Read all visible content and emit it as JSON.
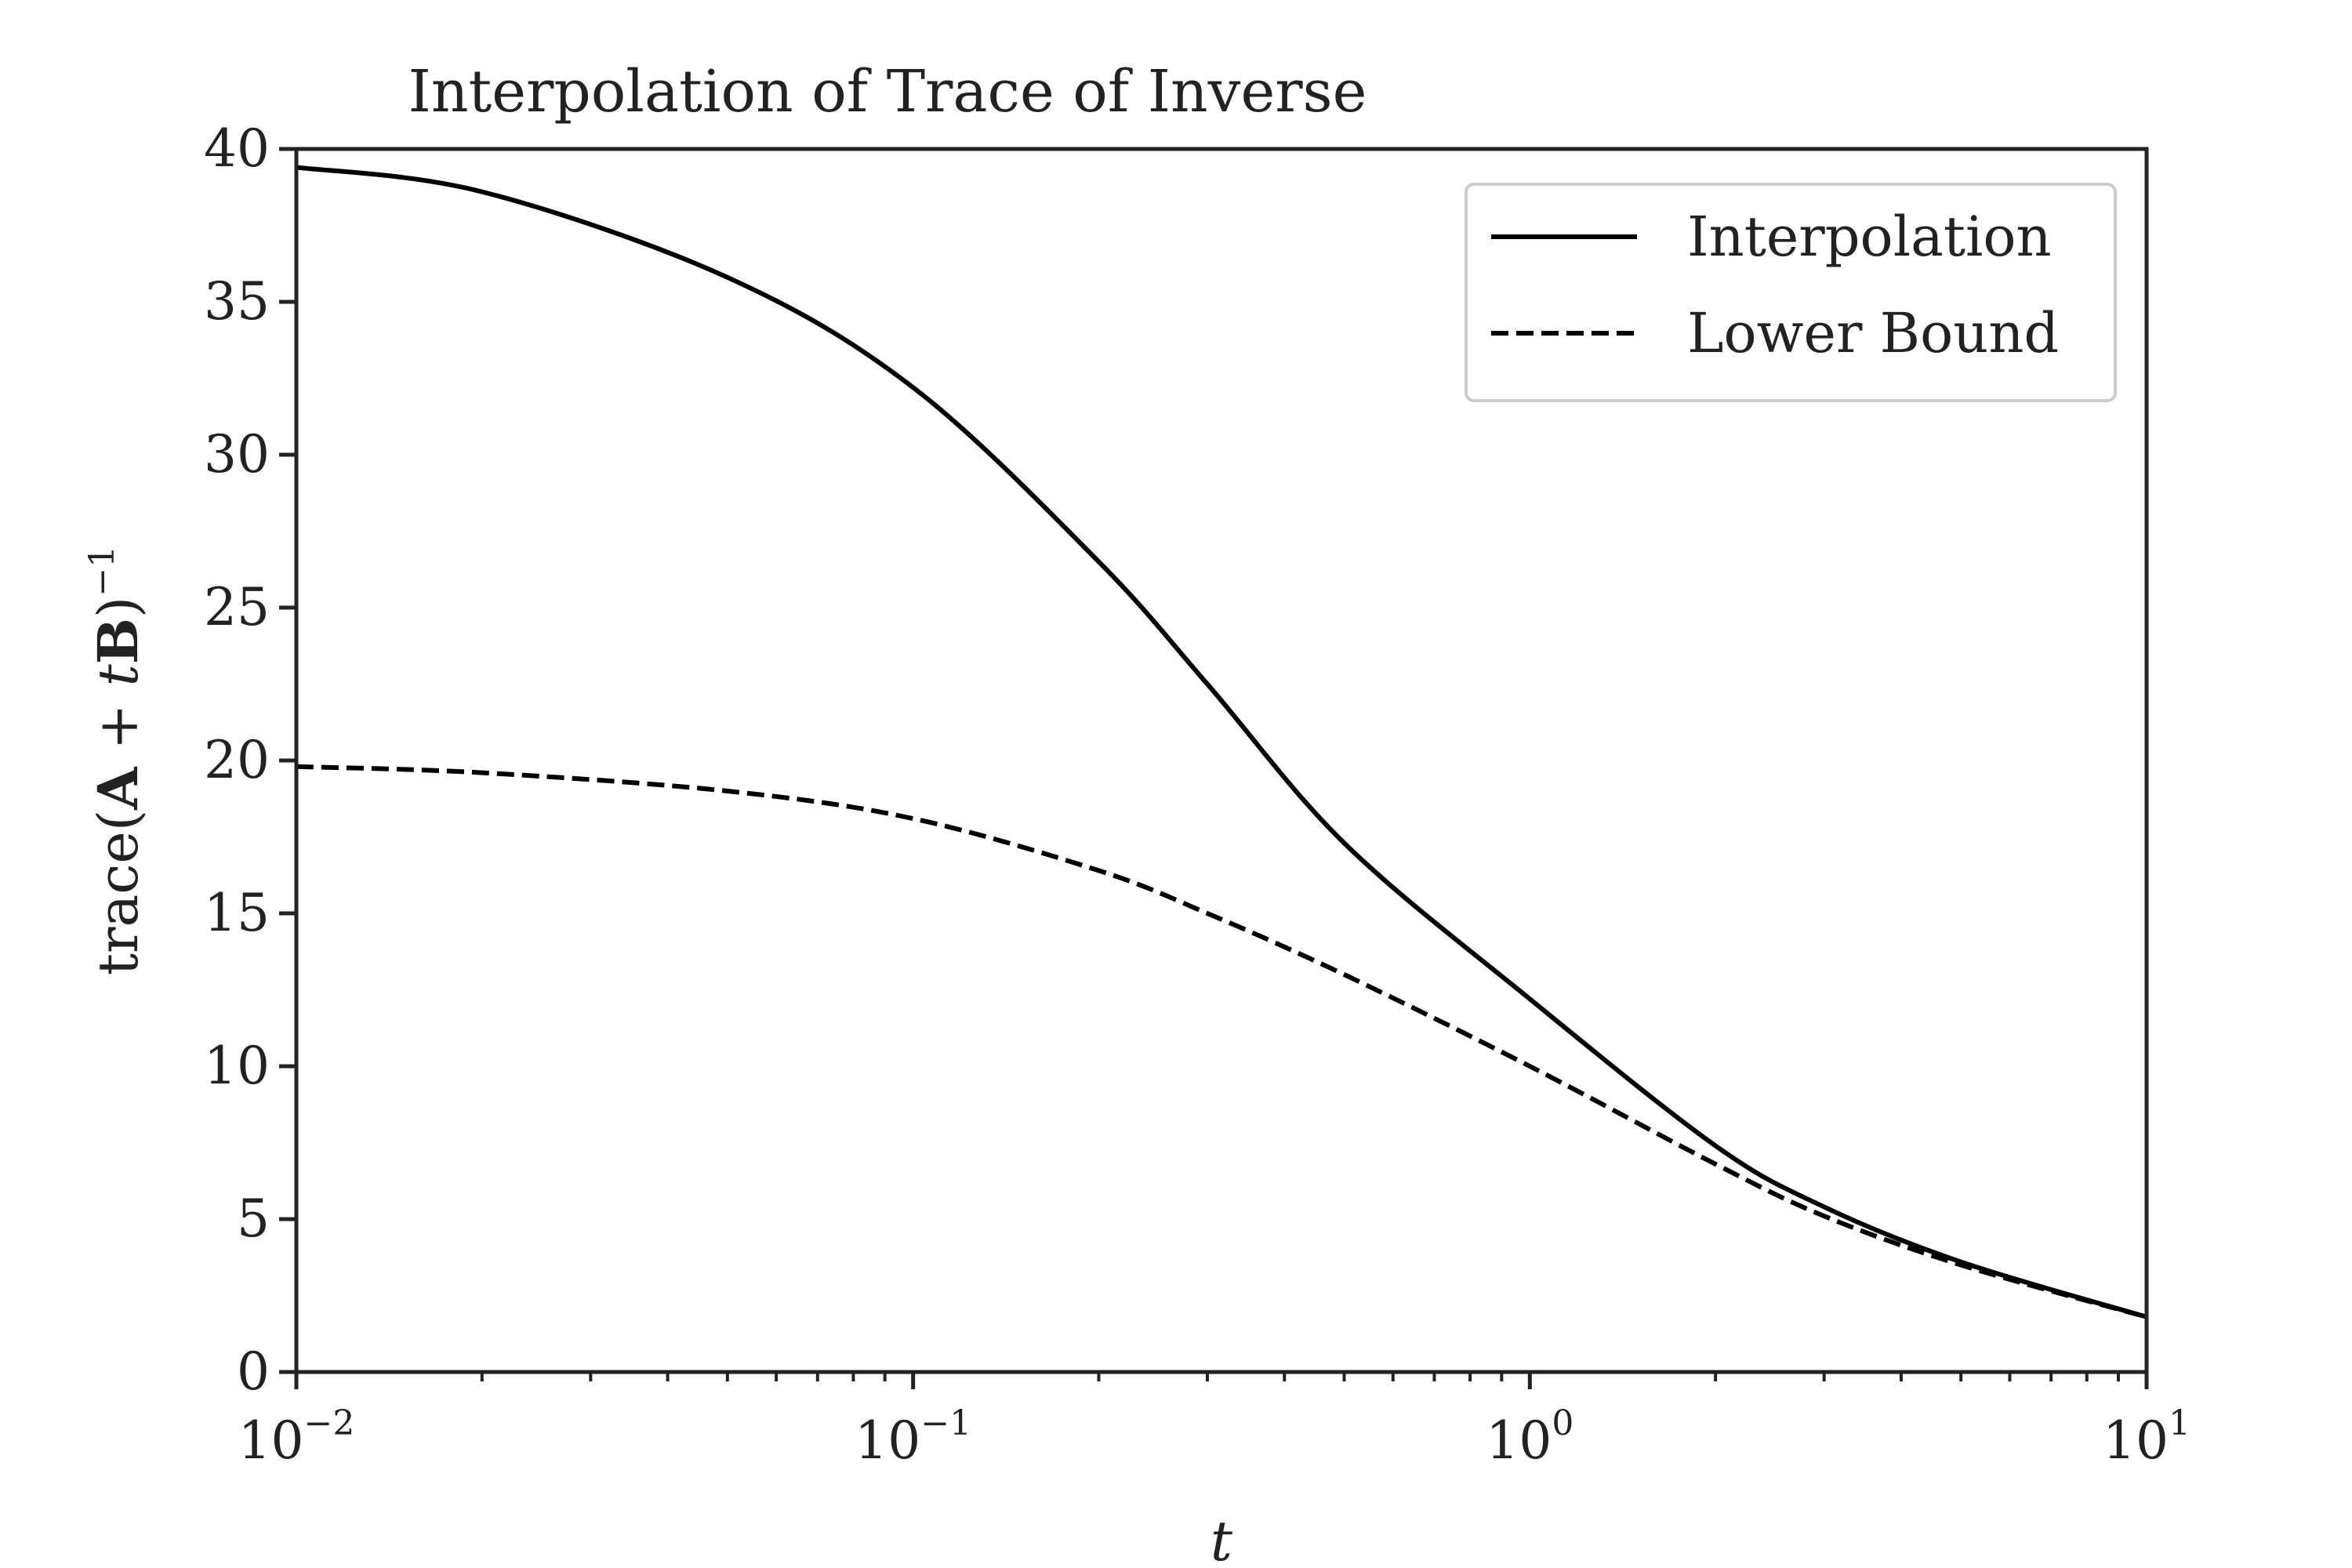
{
  "chart_data": {
    "type": "line",
    "title": "Interpolation of Trace of Inverse",
    "xlabel": "t",
    "ylabel": {
      "pre": "trace(",
      "bold": "A",
      "mid": " + ",
      "italic": "t",
      "bold2": "B",
      "post": ")",
      "sup": "−1"
    },
    "xscale": "log",
    "xlim": [
      0.01,
      10
    ],
    "ylim": [
      0,
      40
    ],
    "grid": false,
    "legend_position": "top-right",
    "x_ticks": [
      {
        "base": "10",
        "exp": "−2",
        "value": 0.01
      },
      {
        "base": "10",
        "exp": "−1",
        "value": 0.1
      },
      {
        "base": "10",
        "exp": "0",
        "value": 1
      },
      {
        "base": "10",
        "exp": "1",
        "value": 10
      }
    ],
    "y_ticks": [
      "0",
      "5",
      "10",
      "15",
      "20",
      "25",
      "30",
      "35",
      "40"
    ],
    "x": [
      0.01,
      0.02,
      0.05,
      0.1,
      0.2,
      0.3,
      0.5,
      1,
      2,
      3,
      5,
      10
    ],
    "series": [
      {
        "name": "Interpolation",
        "style": "solid",
        "values": [
          39.4,
          38.6,
          35.8,
          32.2,
          26.5,
          22.5,
          17.3,
          12.2,
          7.4,
          5.4,
          3.6,
          1.8
        ]
      },
      {
        "name": "Lower Bound",
        "style": "dashed",
        "values": [
          19.8,
          19.6,
          19.0,
          18.1,
          16.4,
          15.0,
          13.0,
          10.0,
          6.8,
          5.1,
          3.5,
          1.8
        ]
      }
    ],
    "colors": {
      "line": "#000000",
      "axis": "#222222",
      "legend_border": "#cccccc"
    }
  }
}
